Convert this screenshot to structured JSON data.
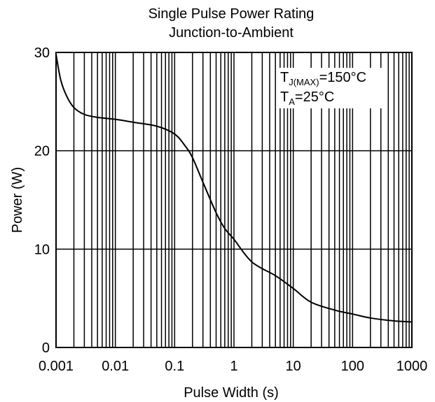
{
  "chart_data": {
    "type": "line",
    "title": "Single Pulse Power Rating",
    "subtitle": "Junction-to-Ambient",
    "xlabel": "Pulse Width (s)",
    "ylabel": "Power (W)",
    "x_scale": "log",
    "xlim": [
      0.001,
      1000
    ],
    "ylim": [
      0,
      30
    ],
    "x_ticks": [
      "0.001",
      "0.01",
      "0.1",
      "1",
      "10",
      "100",
      "1000"
    ],
    "y_ticks": [
      "0",
      "10",
      "20",
      "30"
    ],
    "grid": true,
    "annotations": [
      {
        "main": "T",
        "sub": "J(MAX)",
        "rest": "=150°C"
      },
      {
        "main": "T",
        "sub": "A",
        "rest": "=25°C"
      }
    ],
    "series": [
      {
        "x": [
          0.001,
          0.0012,
          0.0015,
          0.002,
          0.003,
          0.005,
          0.01,
          0.02,
          0.05,
          0.1,
          0.15,
          0.2,
          0.3,
          0.5,
          0.7,
          1,
          2,
          5,
          10,
          20,
          50,
          100,
          200,
          500,
          1000
        ],
        "y": [
          29.8,
          27.2,
          25.6,
          24.4,
          23.7,
          23.4,
          23.2,
          22.9,
          22.5,
          21.7,
          20.5,
          19.3,
          16.8,
          13.7,
          12.1,
          11.0,
          8.7,
          7.3,
          6.0,
          4.6,
          3.8,
          3.4,
          3.0,
          2.7,
          2.6
        ]
      }
    ]
  }
}
